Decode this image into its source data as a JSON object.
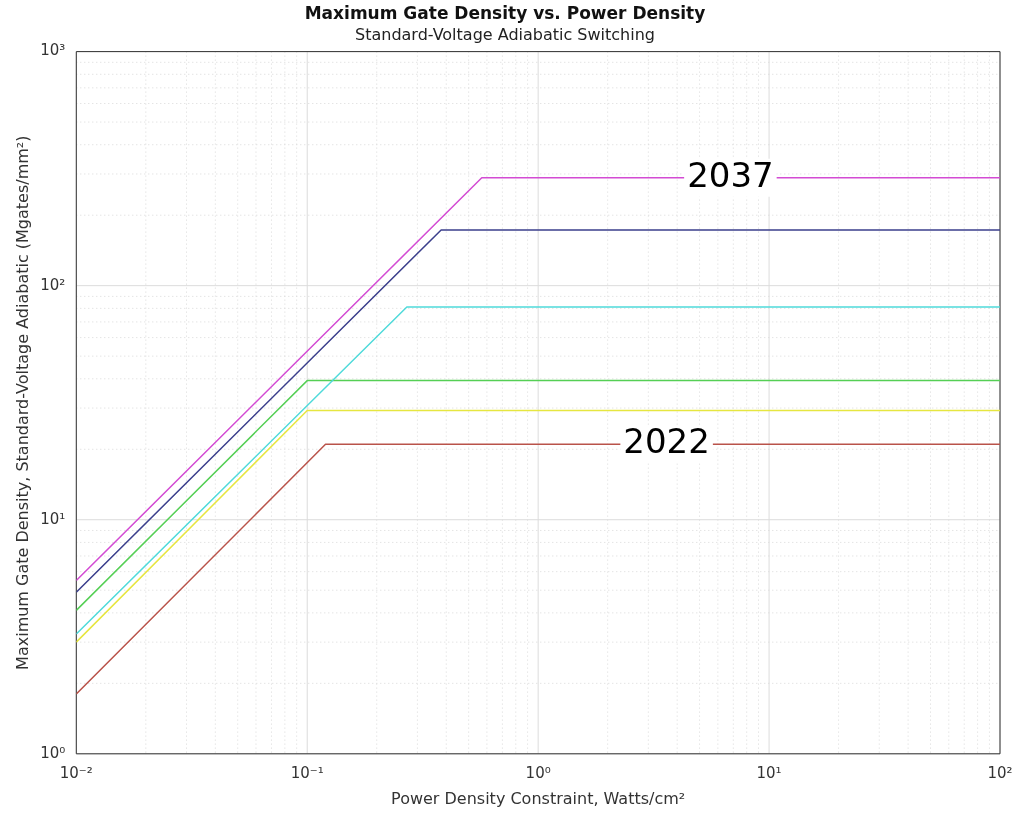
{
  "chart_data": {
    "type": "line",
    "title": "Maximum Gate Density vs. Power Density",
    "subtitle": "Standard-Voltage Adiabatic Switching",
    "xlabel": "Power Density Constraint, Watts/cm²",
    "ylabel": "Maximum Gate Density, Standard-Voltage Adiabatic (Mgates/mm²)",
    "log": "xy",
    "grid": true,
    "legend": false,
    "marker": "none",
    "line_style": "solid",
    "xlim": [
      0.01,
      100
    ],
    "ylim": [
      1,
      1000
    ],
    "xticks": [
      {
        "value": 0.01,
        "label": "10⁻²"
      },
      {
        "value": 0.02,
        "label": null
      },
      {
        "value": 0.03,
        "label": null
      },
      {
        "value": 0.04,
        "label": null
      },
      {
        "value": 0.05,
        "label": null
      },
      {
        "value": 0.06,
        "label": null
      },
      {
        "value": 0.07,
        "label": null
      },
      {
        "value": 0.08,
        "label": null
      },
      {
        "value": 0.09,
        "label": null
      },
      {
        "value": 0.1,
        "label": "10⁻¹"
      },
      {
        "value": 0.2,
        "label": null
      },
      {
        "value": 0.3,
        "label": null
      },
      {
        "value": 0.4,
        "label": null
      },
      {
        "value": 0.5,
        "label": null
      },
      {
        "value": 0.6,
        "label": null
      },
      {
        "value": 0.7,
        "label": null
      },
      {
        "value": 0.8,
        "label": null
      },
      {
        "value": 0.9,
        "label": null
      },
      {
        "value": 1,
        "label": "10⁰"
      },
      {
        "value": 2,
        "label": null
      },
      {
        "value": 3,
        "label": null
      },
      {
        "value": 4,
        "label": null
      },
      {
        "value": 5,
        "label": null
      },
      {
        "value": 6,
        "label": null
      },
      {
        "value": 7,
        "label": null
      },
      {
        "value": 8,
        "label": null
      },
      {
        "value": 9,
        "label": null
      },
      {
        "value": 10,
        "label": "10¹"
      },
      {
        "value": 20,
        "label": null
      },
      {
        "value": 30,
        "label": null
      },
      {
        "value": 40,
        "label": null
      },
      {
        "value": 50,
        "label": null
      },
      {
        "value": 60,
        "label": null
      },
      {
        "value": 70,
        "label": null
      },
      {
        "value": 80,
        "label": null
      },
      {
        "value": 90,
        "label": null
      },
      {
        "value": 100,
        "label": "10²"
      }
    ],
    "yticks": [
      {
        "value": 1,
        "label": "10⁰"
      },
      {
        "value": 2,
        "label": null
      },
      {
        "value": 3,
        "label": null
      },
      {
        "value": 4,
        "label": null
      },
      {
        "value": 5,
        "label": null
      },
      {
        "value": 6,
        "label": null
      },
      {
        "value": 7,
        "label": null
      },
      {
        "value": 8,
        "label": null
      },
      {
        "value": 9,
        "label": null
      },
      {
        "value": 10,
        "label": "10¹"
      },
      {
        "value": 20,
        "label": null
      },
      {
        "value": 30,
        "label": null
      },
      {
        "value": 40,
        "label": null
      },
      {
        "value": 50,
        "label": null
      },
      {
        "value": 60,
        "label": null
      },
      {
        "value": 70,
        "label": null
      },
      {
        "value": 80,
        "label": null
      },
      {
        "value": 90,
        "label": null
      },
      {
        "value": 100,
        "label": "10²"
      },
      {
        "value": 200,
        "label": null
      },
      {
        "value": 300,
        "label": null
      },
      {
        "value": 400,
        "label": null
      },
      {
        "value": 500,
        "label": null
      },
      {
        "value": 600,
        "label": null
      },
      {
        "value": 700,
        "label": null
      },
      {
        "value": 800,
        "label": null
      },
      {
        "value": 900,
        "label": null
      },
      {
        "value": 1000,
        "label": "10³"
      }
    ],
    "series": [
      {
        "color": "#d34bd3",
        "x": [
          0.01,
          0.57,
          100
        ],
        "values": [
          5.5,
          289,
          289
        ]
      },
      {
        "color": "#3b3f8c",
        "x": [
          0.01,
          0.38,
          100
        ],
        "values": [
          4.9,
          173,
          173
        ]
      },
      {
        "color": "#4fdada",
        "x": [
          0.01,
          0.27,
          100
        ],
        "values": [
          3.25,
          81,
          81
        ]
      },
      {
        "color": "#55cf55",
        "x": [
          0.01,
          0.1,
          100
        ],
        "values": [
          4.1,
          39.3,
          39.3
        ]
      },
      {
        "color": "#e6e640",
        "x": [
          0.01,
          0.1,
          100
        ],
        "values": [
          3.0,
          29.3,
          29.3
        ]
      },
      {
        "color": "#b9534a",
        "x": [
          0.01,
          0.12,
          100
        ],
        "values": [
          1.8,
          21,
          21
        ]
      }
    ],
    "annotations": [
      {
        "text": "2037",
        "x": 6.8,
        "y": 289
      },
      {
        "text": "2022",
        "x": 3.6,
        "y": 21
      }
    ]
  }
}
